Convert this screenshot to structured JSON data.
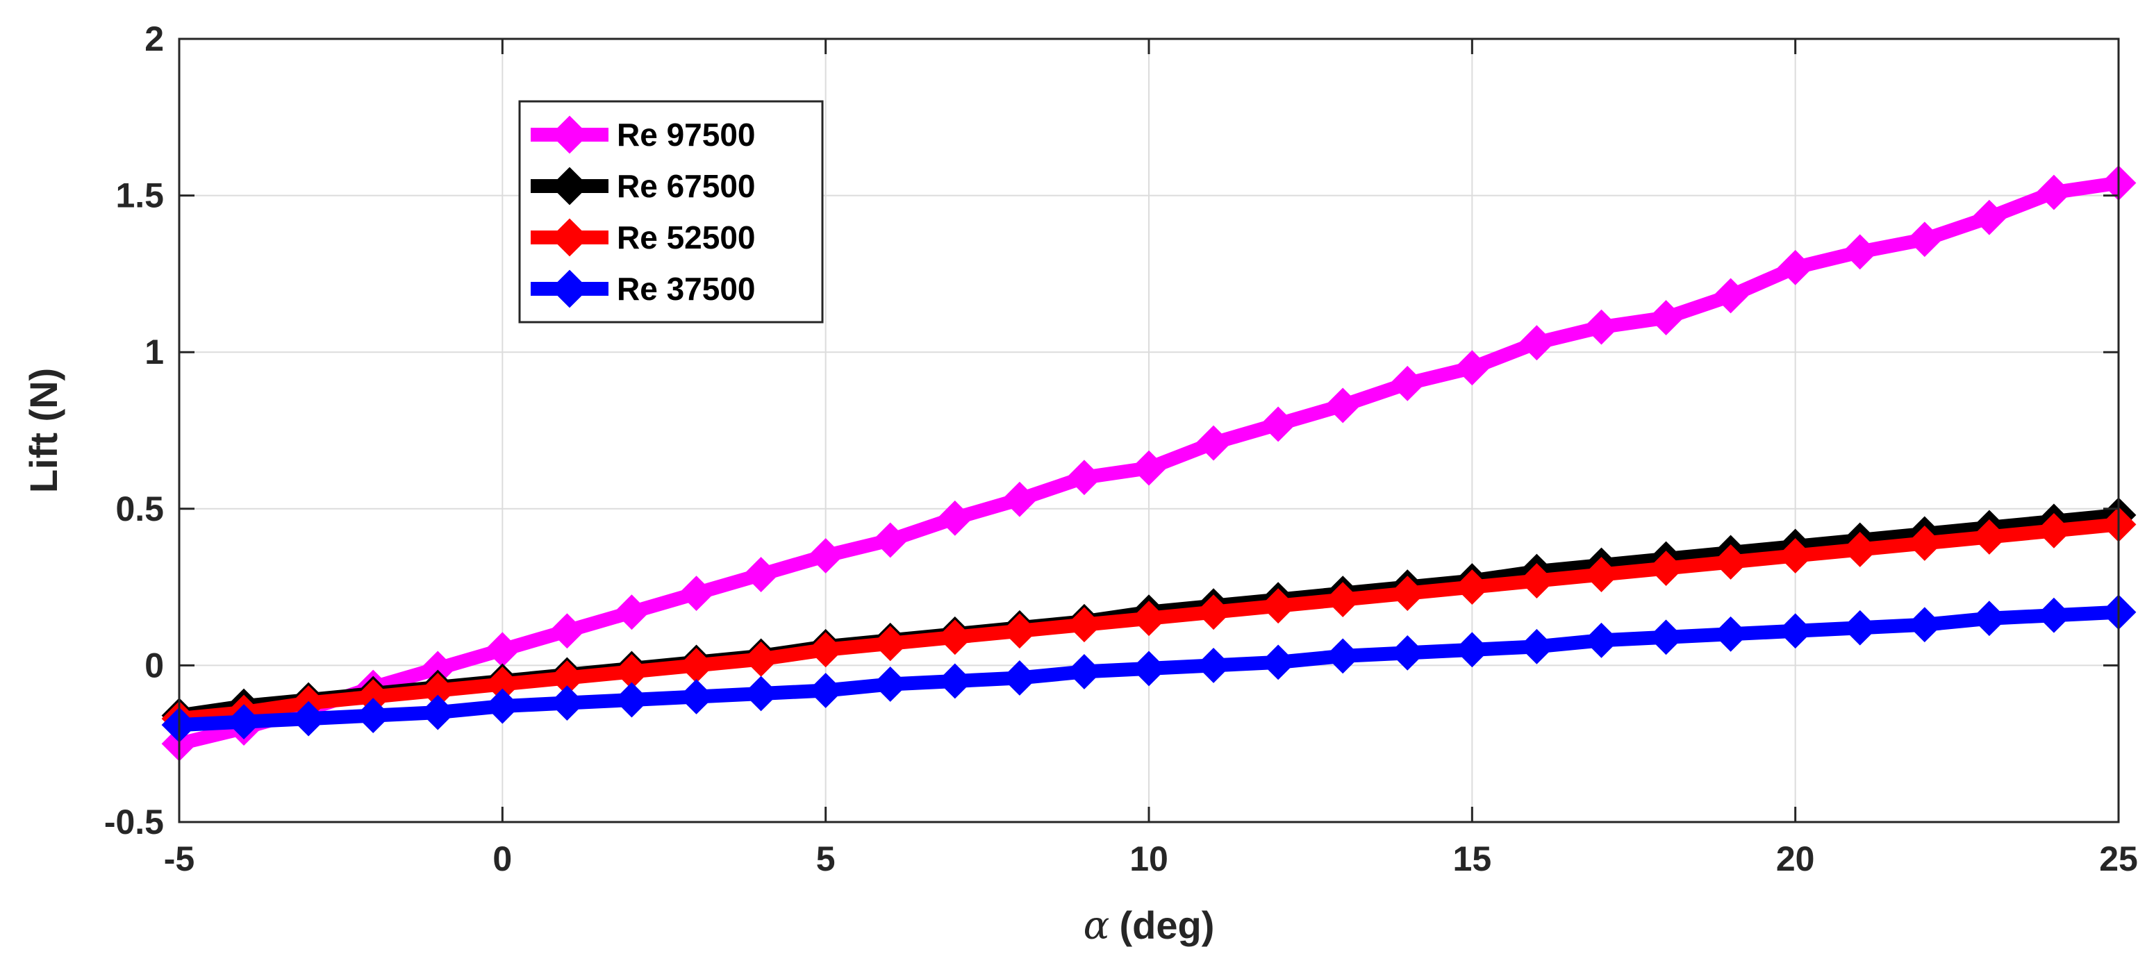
{
  "chart_data": {
    "type": "line",
    "xlabel_symbol": "α",
    "xlabel": "(deg)",
    "ylabel": "Lift (N)",
    "xlim": [
      -5,
      25
    ],
    "ylim": [
      -0.5,
      2
    ],
    "xticks": [
      -5,
      0,
      5,
      10,
      15,
      20,
      25
    ],
    "yticks": [
      -0.5,
      0,
      0.5,
      1,
      1.5,
      2
    ],
    "ytick_labels": [
      "-0.5",
      "0",
      "0.5",
      "1",
      "1.5",
      "2"
    ],
    "grid": true,
    "legend_position": "upper-left",
    "x": [
      -5,
      -4,
      -3,
      -2,
      -1,
      0,
      1,
      2,
      3,
      4,
      5,
      6,
      7,
      8,
      9,
      10,
      11,
      12,
      13,
      14,
      15,
      16,
      17,
      18,
      19,
      20,
      21,
      22,
      23,
      24,
      25
    ],
    "series": [
      {
        "name": "Re 97500",
        "color": "#ff00ff",
        "marker": "diamond",
        "values": [
          -0.25,
          -0.2,
          -0.14,
          -0.07,
          -0.01,
          0.05,
          0.11,
          0.17,
          0.23,
          0.29,
          0.35,
          0.4,
          0.47,
          0.53,
          0.6,
          0.63,
          0.71,
          0.77,
          0.83,
          0.9,
          0.95,
          1.03,
          1.08,
          1.11,
          1.18,
          1.27,
          1.32,
          1.36,
          1.43,
          1.51,
          1.54
        ]
      },
      {
        "name": "Re 67500",
        "color": "#000000",
        "marker": "diamond",
        "values": [
          -0.16,
          -0.13,
          -0.11,
          -0.09,
          -0.07,
          -0.05,
          -0.03,
          -0.01,
          0.01,
          0.03,
          0.06,
          0.08,
          0.1,
          0.12,
          0.14,
          0.17,
          0.19,
          0.21,
          0.23,
          0.25,
          0.27,
          0.3,
          0.32,
          0.34,
          0.36,
          0.38,
          0.4,
          0.42,
          0.44,
          0.46,
          0.48
        ]
      },
      {
        "name": "Re 52500",
        "color": "#ff0000",
        "marker": "diamond",
        "values": [
          -0.17,
          -0.15,
          -0.12,
          -0.1,
          -0.08,
          -0.06,
          -0.04,
          -0.02,
          0.0,
          0.02,
          0.05,
          0.07,
          0.09,
          0.11,
          0.13,
          0.15,
          0.17,
          0.19,
          0.21,
          0.23,
          0.25,
          0.27,
          0.29,
          0.31,
          0.33,
          0.35,
          0.37,
          0.39,
          0.41,
          0.43,
          0.45
        ]
      },
      {
        "name": "Re 37500",
        "color": "#0000ff",
        "marker": "diamond",
        "values": [
          -0.19,
          -0.18,
          -0.17,
          -0.16,
          -0.15,
          -0.13,
          -0.12,
          -0.11,
          -0.1,
          -0.09,
          -0.08,
          -0.06,
          -0.05,
          -0.04,
          -0.02,
          -0.01,
          0.0,
          0.01,
          0.03,
          0.04,
          0.05,
          0.06,
          0.08,
          0.09,
          0.1,
          0.11,
          0.12,
          0.13,
          0.15,
          0.16,
          0.17
        ]
      }
    ]
  }
}
